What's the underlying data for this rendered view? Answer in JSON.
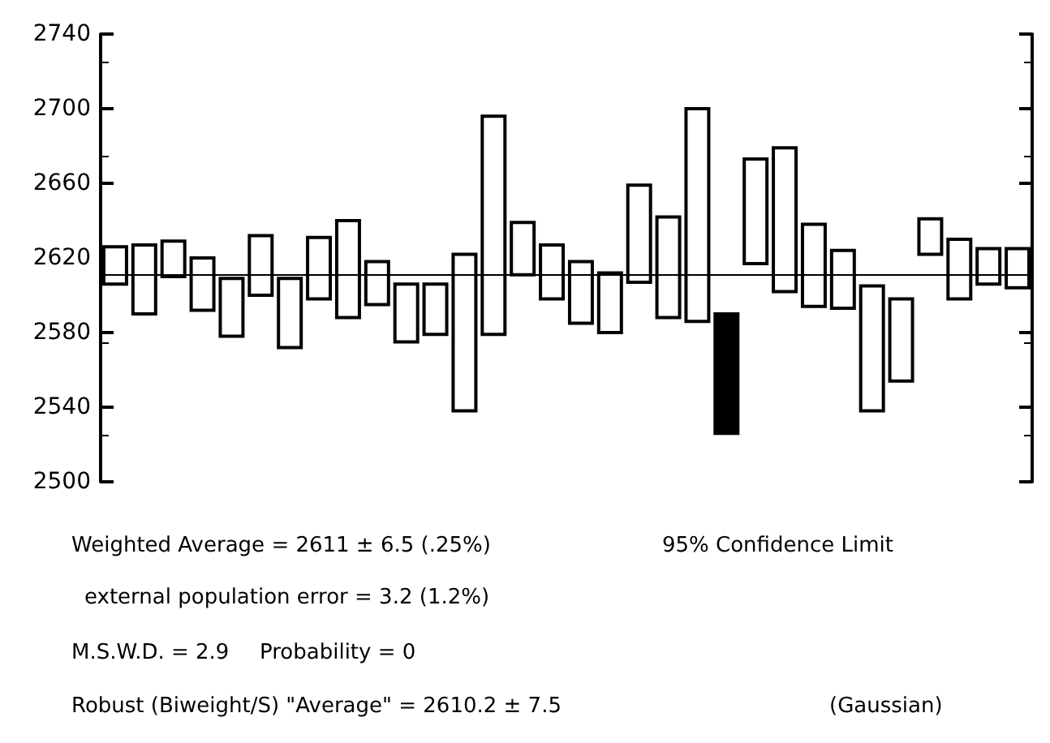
{
  "chart_data": {
    "type": "bar",
    "categories": [
      null,
      null,
      null,
      null,
      null,
      null,
      null,
      null,
      null,
      null,
      null,
      null,
      null,
      null,
      null,
      null,
      null,
      null,
      null,
      null,
      null,
      null,
      null,
      null,
      null,
      null,
      null,
      null,
      null,
      null,
      null,
      null
    ],
    "base": [
      2606,
      2590,
      2610,
      2592,
      2578,
      2600,
      2572,
      2598,
      2588,
      2595,
      2575,
      2579,
      2538,
      2579,
      2611,
      2598,
      2585,
      2580,
      2607,
      2588,
      2586,
      2526,
      2617,
      2602,
      2594,
      2593,
      2538,
      2554,
      2622,
      2598,
      2606,
      2604
    ],
    "values": [
      20,
      37,
      19,
      28,
      31,
      32,
      37,
      33,
      52,
      23,
      31,
      27,
      84,
      117,
      28,
      29,
      33,
      32,
      52,
      54,
      114,
      64,
      56,
      77,
      44,
      31,
      67,
      44,
      19,
      32,
      19,
      21
    ],
    "colors": [
      "#ffffff",
      "#ffffff",
      "#ffffff",
      "#ffffff",
      "#ffffff",
      "#ffffff",
      "#ffffff",
      "#ffffff",
      "#ffffff",
      "#ffffff",
      "#ffffff",
      "#ffffff",
      "#ffffff",
      "#ffffff",
      "#ffffff",
      "#ffffff",
      "#ffffff",
      "#ffffff",
      "#ffffff",
      "#ffffff",
      "#ffffff",
      "#000000",
      "#ffffff",
      "#ffffff",
      "#ffffff",
      "#ffffff",
      "#ffffff",
      "#ffffff",
      "#ffffff",
      "#ffffff",
      "#ffffff",
      "#ffffff"
    ],
    "ylim": [
      2500,
      2740
    ],
    "yticks": [
      2500,
      2540,
      2580,
      2620,
      2660,
      2700,
      2740
    ],
    "grid": false,
    "ref_lines": [
      {
        "axis": "y",
        "value": 2611
      }
    ],
    "annotations": [
      "Weighted Average = 2611 ± 6.5 (.25%)",
      "95% Confidence Limit",
      "external population error = 3.2 (1.2%)",
      "M.S.W.D. = 2.9",
      "Probability = 0",
      "Robust (Biweight/S) \"Average\" = 2610.2 ± 7.5",
      "(Gaussian)"
    ]
  }
}
